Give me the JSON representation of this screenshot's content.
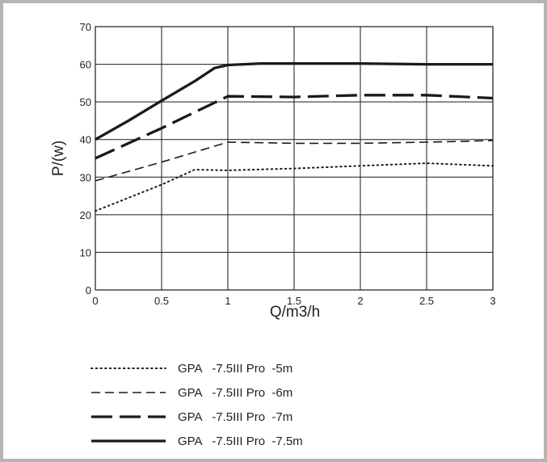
{
  "chart_data": {
    "type": "line",
    "title": "",
    "xlabel": "Q/m3/h",
    "ylabel": "P/(w)",
    "xlim": [
      0,
      3
    ],
    "ylim": [
      0,
      70
    ],
    "xticks": [
      {
        "value": 0,
        "label": "0"
      },
      {
        "value": 0.5,
        "label": "0.5"
      },
      {
        "value": 1,
        "label": "1"
      },
      {
        "value": 1.5,
        "label": "1.5"
      },
      {
        "value": 2,
        "label": "2"
      },
      {
        "value": 2.5,
        "label": "2.5"
      },
      {
        "value": 3,
        "label": "3"
      }
    ],
    "yticks": [
      {
        "value": 0,
        "label": "0"
      },
      {
        "value": 10,
        "label": "10"
      },
      {
        "value": 20,
        "label": "20"
      },
      {
        "value": 30,
        "label": "30"
      },
      {
        "value": 40,
        "label": "40"
      },
      {
        "value": 50,
        "label": "50"
      },
      {
        "value": 60,
        "label": "60"
      },
      {
        "value": 70,
        "label": "70"
      }
    ],
    "grid": true,
    "legend_position": "bottom",
    "series": [
      {
        "name": "GPA   -7.5III Pro  -5m",
        "style": "dotted",
        "x": [
          0,
          0.25,
          0.5,
          0.75,
          1.0,
          1.5,
          2.0,
          2.5,
          3.0
        ],
        "y": [
          21,
          24.5,
          28,
          32,
          31.8,
          32.3,
          33,
          33.7,
          33
        ]
      },
      {
        "name": "GPA   -7.5III Pro  -6m",
        "style": "dashed",
        "x": [
          0,
          0.5,
          1.0,
          1.5,
          2.0,
          2.5,
          3.0
        ],
        "y": [
          29,
          34,
          39.3,
          39,
          39,
          39.3,
          39.7
        ]
      },
      {
        "name": "GPA   -7.5III Pro  -7m",
        "style": "long-dashed",
        "x": [
          0,
          0.5,
          1.0,
          1.5,
          2.0,
          2.5,
          3.0
        ],
        "y": [
          35,
          43,
          51.5,
          51.3,
          51.8,
          51.8,
          51
        ]
      },
      {
        "name": "GPA   -7.5III Pro  -7.5m",
        "style": "solid",
        "x": [
          0,
          0.25,
          0.5,
          0.75,
          0.9,
          1.0,
          1.25,
          1.5,
          2.0,
          2.5,
          3.0
        ],
        "y": [
          40,
          45,
          50.3,
          55.5,
          59,
          59.8,
          60.2,
          60.2,
          60.2,
          60,
          60
        ]
      }
    ]
  },
  "colors": {
    "line": "#1a1a1a",
    "grid": "#1a1a1a",
    "frame": "#b5b5b5",
    "text": "#222222"
  }
}
